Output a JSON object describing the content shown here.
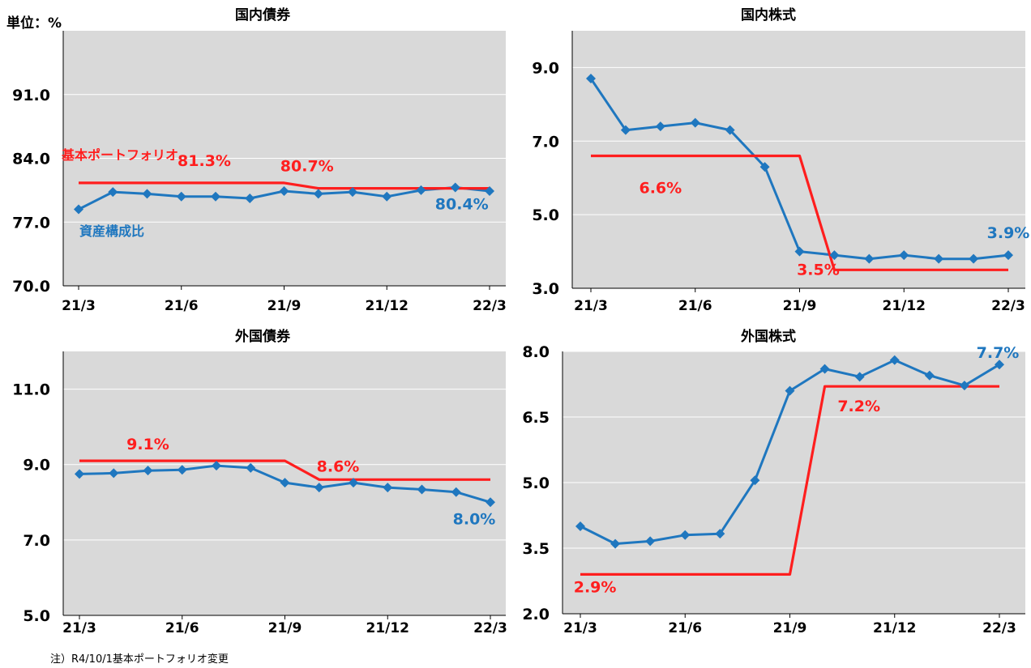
{
  "unit_label": "単位：%",
  "footnote": "注）R4/10/1基本ポートフォリオ変更",
  "colors": {
    "asset": "#1F77BF",
    "policy": "#FF1E1E",
    "plot_bg": "#D9D9D9",
    "grid": "#FFFFFF"
  },
  "chart_data": [
    {
      "type": "line",
      "title": "国内債券",
      "categories": [
        "21/3",
        "21/4",
        "21/5",
        "21/6",
        "21/7",
        "21/8",
        "21/9",
        "21/10",
        "21/11",
        "21/12",
        "22/1",
        "22/2",
        "22/3"
      ],
      "x_tick_labels": [
        "21/3",
        "21/6",
        "21/9",
        "21/12",
        "22/3"
      ],
      "ylim": [
        70.0,
        98.0
      ],
      "yticks": [
        "70.0",
        "77.0",
        "84.0",
        "91.0"
      ],
      "grid": true,
      "series": [
        {
          "name": "資産構成比",
          "role": "asset",
          "values": [
            78.4,
            80.3,
            80.1,
            79.8,
            79.8,
            79.6,
            80.4,
            80.1,
            80.3,
            79.8,
            80.5,
            80.8,
            80.4
          ]
        },
        {
          "name": "基本ポートフォリオ",
          "role": "policy",
          "values": [
            81.3,
            81.3,
            81.3,
            81.3,
            81.3,
            81.3,
            81.3,
            80.7,
            80.7,
            80.7,
            80.7,
            80.7,
            80.7
          ]
        }
      ],
      "data_labels": [
        {
          "text": "81.3%",
          "series": "policy",
          "index": 4
        },
        {
          "text": "80.7%",
          "series": "policy",
          "index": 7
        },
        {
          "text": "80.4%",
          "series": "asset",
          "index": 11
        }
      ]
    },
    {
      "type": "line",
      "title": "国内株式",
      "categories": [
        "21/3",
        "21/4",
        "21/5",
        "21/6",
        "21/7",
        "21/8",
        "21/9",
        "21/10",
        "21/11",
        "21/12",
        "22/1",
        "22/2",
        "22/3"
      ],
      "x_tick_labels": [
        "21/3",
        "21/6",
        "21/9",
        "21/12",
        "22/3"
      ],
      "ylim": [
        3.0,
        10.0
      ],
      "yticks": [
        "3.0",
        "5.0",
        "7.0",
        "9.0"
      ],
      "grid": true,
      "series": [
        {
          "name": "資産構成比",
          "role": "asset",
          "values": [
            8.7,
            7.3,
            7.4,
            7.5,
            7.3,
            6.3,
            4.0,
            3.9,
            3.8,
            3.9,
            3.8,
            3.8,
            3.9
          ]
        },
        {
          "name": "基本ポートフォリオ",
          "role": "policy",
          "values": [
            6.6,
            6.6,
            6.6,
            6.6,
            6.6,
            6.6,
            6.6,
            3.5,
            3.5,
            3.5,
            3.5,
            3.5,
            3.5
          ]
        }
      ],
      "data_labels": [
        {
          "text": "6.6%",
          "series": "policy",
          "index": 2
        },
        {
          "text": "3.5%",
          "series": "policy",
          "index": 7
        },
        {
          "text": "3.9%",
          "series": "asset",
          "index": 12
        }
      ]
    },
    {
      "type": "line",
      "title": "外国債券",
      "categories": [
        "21/3",
        "21/4",
        "21/5",
        "21/6",
        "21/7",
        "21/8",
        "21/9",
        "21/10",
        "21/11",
        "21/12",
        "22/1",
        "22/2",
        "22/3"
      ],
      "x_tick_labels": [
        "21/3",
        "21/6",
        "21/9",
        "21/12",
        "22/3"
      ],
      "ylim": [
        5.0,
        12.0
      ],
      "yticks": [
        "5.0",
        "7.0",
        "9.0",
        "11.0"
      ],
      "grid": true,
      "series": [
        {
          "name": "資産構成比",
          "role": "asset",
          "values": [
            8.75,
            8.77,
            8.84,
            8.86,
            8.97,
            8.91,
            8.52,
            8.39,
            8.52,
            8.39,
            8.34,
            8.27,
            8.0
          ]
        },
        {
          "name": "基本ポートフォリオ",
          "role": "policy",
          "values": [
            9.1,
            9.1,
            9.1,
            9.1,
            9.1,
            9.1,
            9.1,
            8.6,
            8.6,
            8.6,
            8.6,
            8.6,
            8.6
          ]
        }
      ],
      "data_labels": [
        {
          "text": "9.1%",
          "series": "policy",
          "index": 2
        },
        {
          "text": "8.6%",
          "series": "policy",
          "index": 8
        },
        {
          "text": "8.0%",
          "series": "asset",
          "index": 12
        }
      ]
    },
    {
      "type": "line",
      "title": "外国株式",
      "categories": [
        "21/3",
        "21/4",
        "21/5",
        "21/6",
        "21/7",
        "21/8",
        "21/9",
        "21/10",
        "21/11",
        "21/12",
        "22/1",
        "22/2",
        "22/3"
      ],
      "x_tick_labels": [
        "21/3",
        "21/6",
        "21/9",
        "21/12",
        "22/3"
      ],
      "ylim": [
        2.0,
        8.0
      ],
      "yticks": [
        "2.0",
        "3.5",
        "5.0",
        "6.5",
        "8.0"
      ],
      "grid": true,
      "series": [
        {
          "name": "資産構成比",
          "role": "asset",
          "values": [
            4.0,
            3.6,
            3.66,
            3.8,
            3.83,
            5.05,
            7.1,
            7.6,
            7.42,
            7.8,
            7.45,
            7.22,
            7.7
          ]
        },
        {
          "name": "基本ポートフォリオ",
          "role": "policy",
          "values": [
            2.9,
            2.9,
            2.9,
            2.9,
            2.9,
            2.9,
            2.9,
            7.2,
            7.2,
            7.2,
            7.2,
            7.2,
            7.2
          ]
        }
      ],
      "data_labels": [
        {
          "text": "2.9%",
          "series": "policy",
          "index": 1
        },
        {
          "text": "7.2%",
          "series": "policy",
          "index": 8
        },
        {
          "text": "7.7%",
          "series": "asset",
          "index": 12
        }
      ]
    }
  ]
}
